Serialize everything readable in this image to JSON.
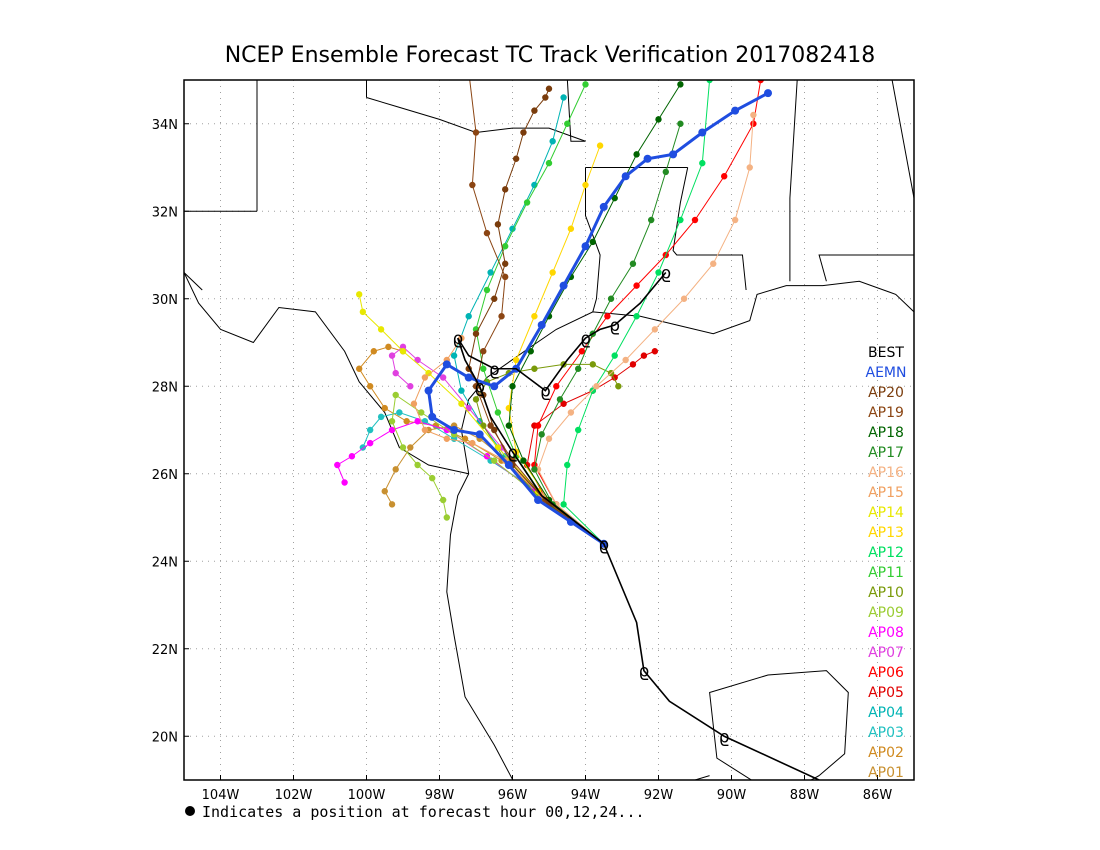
{
  "title": "NCEP Ensemble Forecast TC Track Verification 2017082418",
  "footnote": "Indicates a position at forecast hour 00,12,24...",
  "colors": {
    "best": "#000000",
    "aemn": "#1f4de0",
    "coast": "#000000",
    "grid": "#a0a0a0"
  },
  "chart_data": {
    "type": "scatter",
    "title": "NCEP Ensemble Forecast TC Track Verification 2017082418",
    "xlabel": "",
    "ylabel": "",
    "xlim": [
      -105,
      -85
    ],
    "ylim": [
      19,
      35
    ],
    "x_ticks": [
      -104,
      -102,
      -100,
      -98,
      -96,
      -94,
      -92,
      -90,
      -88,
      -86
    ],
    "x_tick_labels": [
      "104W",
      "102W",
      "100W",
      "98W",
      "96W",
      "94W",
      "92W",
      "90W",
      "88W",
      "86W"
    ],
    "y_ticks": [
      20,
      22,
      24,
      26,
      28,
      30,
      32,
      34
    ],
    "y_tick_labels": [
      "20N",
      "22N",
      "24N",
      "26N",
      "28N",
      "30N",
      "32N",
      "34N"
    ],
    "grid": true,
    "legend_position": "right",
    "legend": [
      "BEST",
      "AEMN",
      "AP20",
      "AP19",
      "AP18",
      "AP17",
      "AP16",
      "AP15",
      "AP14",
      "AP13",
      "AP12",
      "AP11",
      "AP10",
      "AP09",
      "AP08",
      "AP07",
      "AP06",
      "AP05",
      "AP04",
      "AP03",
      "AP02",
      "AP01"
    ],
    "series": [
      {
        "name": "BEST",
        "color": "#000000",
        "marker": "storm-symbol",
        "lon": [
          -87.6,
          -90.2,
          -91.7,
          -92.4,
          -92.6,
          -93.5,
          -95.2,
          -96.0,
          -96.6,
          -96.9,
          -97.3,
          -97.5,
          -97.2,
          -96.5,
          -95.9,
          -95.1,
          -94.5,
          -94.0,
          -93.6,
          -93.2,
          -92.5,
          -91.8
        ],
        "lat": [
          19.0,
          20.0,
          20.8,
          21.5,
          22.6,
          24.4,
          25.5,
          26.5,
          27.3,
          28.0,
          28.6,
          29.1,
          28.7,
          28.4,
          28.4,
          27.9,
          28.6,
          29.1,
          29.3,
          29.4,
          29.9,
          30.6
        ]
      },
      {
        "name": "AEMN",
        "color": "#1f4de0",
        "lon": [
          -93.5,
          -94.4,
          -95.3,
          -96.1,
          -96.9,
          -97.6,
          -98.2,
          -98.3,
          -97.8,
          -97.2,
          -96.5,
          -95.9,
          -95.2,
          -94.6,
          -94.0,
          -93.5,
          -92.9,
          -92.3,
          -91.6,
          -90.8,
          -89.9,
          -89.0
        ],
        "lat": [
          24.4,
          24.9,
          25.4,
          26.2,
          26.9,
          27.0,
          27.3,
          27.9,
          28.5,
          28.2,
          28.0,
          28.4,
          29.4,
          30.3,
          31.2,
          32.1,
          32.8,
          33.2,
          33.3,
          33.8,
          34.3,
          34.7
        ]
      },
      {
        "name": "AP20",
        "color": "#7a3c0c",
        "lon": [
          -93.5,
          -95.0,
          -96.0,
          -96.5,
          -96.8,
          -97.2,
          -97.0,
          -96.5,
          -96.2,
          -96.4,
          -96.2,
          -95.9,
          -95.7,
          -95.4,
          -95.1,
          -95.0
        ],
        "lat": [
          24.4,
          25.3,
          26.2,
          27.0,
          27.8,
          28.4,
          29.2,
          30.0,
          30.8,
          31.7,
          32.5,
          33.2,
          33.8,
          34.3,
          34.6,
          34.8
        ]
      },
      {
        "name": "AP19",
        "color": "#8b4513",
        "lon": [
          -93.5,
          -95.1,
          -96.0,
          -96.6,
          -97.0,
          -96.8,
          -96.3,
          -96.2,
          -96.7,
          -97.1,
          -97.0,
          -97.2
        ],
        "lat": [
          24.4,
          25.4,
          26.3,
          27.1,
          28.0,
          28.8,
          29.6,
          30.5,
          31.5,
          32.6,
          33.8,
          35.2
        ]
      },
      {
        "name": "AP18",
        "color": "#006400",
        "lon": [
          -93.5,
          -95.0,
          -95.7,
          -96.1,
          -96.0,
          -95.5,
          -95.0,
          -94.4,
          -93.8,
          -93.2,
          -92.6,
          -92.0,
          -91.4
        ],
        "lat": [
          24.4,
          25.4,
          26.3,
          27.1,
          28.0,
          28.8,
          29.6,
          30.5,
          31.3,
          32.3,
          33.3,
          34.1,
          34.9
        ]
      },
      {
        "name": "AP17",
        "color": "#228b22",
        "lon": [
          -93.5,
          -94.9,
          -95.4,
          -95.2,
          -94.7,
          -94.2,
          -93.8,
          -93.3,
          -92.7,
          -92.2,
          -91.8,
          -91.4
        ],
        "lat": [
          24.4,
          25.3,
          26.1,
          26.9,
          27.7,
          28.4,
          29.2,
          30.0,
          30.8,
          31.8,
          32.9,
          34.0
        ]
      },
      {
        "name": "AP16",
        "color": "#f4b283",
        "lon": [
          -93.5,
          -94.8,
          -95.3,
          -95.0,
          -94.4,
          -93.7,
          -92.9,
          -92.1,
          -91.3,
          -90.5,
          -89.9,
          -89.5,
          -89.4
        ],
        "lat": [
          24.4,
          25.3,
          26.1,
          26.8,
          27.4,
          28.0,
          28.6,
          29.3,
          30.0,
          30.8,
          31.8,
          33.0,
          34.2
        ]
      },
      {
        "name": "AP15",
        "color": "#f0a060",
        "lon": [
          -93.5,
          -95.2,
          -96.2,
          -97.1,
          -97.8,
          -98.4,
          -98.7,
          -98.4,
          -97.8,
          -97.4
        ],
        "lat": [
          24.4,
          25.5,
          26.3,
          26.7,
          26.8,
          27.0,
          27.6,
          28.2,
          28.6,
          29.1
        ]
      },
      {
        "name": "AP14",
        "color": "#e8e800",
        "lon": [
          -93.5,
          -95.3,
          -96.4,
          -97.4,
          -98.3,
          -99.0,
          -99.6,
          -100.1,
          -100.2
        ],
        "lat": [
          24.4,
          25.6,
          26.6,
          27.6,
          28.3,
          28.8,
          29.3,
          29.7,
          30.1
        ]
      },
      {
        "name": "AP13",
        "color": "#ffd700",
        "lon": [
          -93.5,
          -95.0,
          -95.9,
          -96.1,
          -95.9,
          -95.4,
          -94.9,
          -94.4,
          -94.0,
          -93.6
        ],
        "lat": [
          24.4,
          25.4,
          26.5,
          27.5,
          28.6,
          29.6,
          30.6,
          31.6,
          32.6,
          33.5
        ]
      },
      {
        "name": "AP12",
        "color": "#00e060",
        "lon": [
          -93.5,
          -94.6,
          -94.5,
          -94.2,
          -93.8,
          -93.2,
          -92.6,
          -92.0,
          -91.4,
          -90.8,
          -90.6
        ],
        "lat": [
          24.4,
          25.3,
          26.2,
          27.0,
          27.9,
          28.7,
          29.6,
          30.6,
          31.8,
          33.1,
          35.0
        ]
      },
      {
        "name": "AP11",
        "color": "#32cd32",
        "lon": [
          -93.5,
          -95.1,
          -95.9,
          -96.4,
          -96.8,
          -97.0,
          -96.7,
          -96.2,
          -95.6,
          -95.0,
          -94.5,
          -94.0
        ],
        "lat": [
          24.4,
          25.4,
          26.4,
          27.4,
          28.4,
          29.3,
          30.2,
          31.2,
          32.2,
          33.1,
          34.0,
          34.9
        ]
      },
      {
        "name": "AP10",
        "color": "#7a9a0a",
        "lon": [
          -93.5,
          -95.2,
          -96.2,
          -96.8,
          -97.0,
          -96.7,
          -96.1,
          -95.4,
          -94.6,
          -93.8,
          -93.3,
          -93.1
        ],
        "lat": [
          24.4,
          25.4,
          26.3,
          27.1,
          27.7,
          28.1,
          28.3,
          28.4,
          28.5,
          28.5,
          28.3,
          28.0
        ]
      },
      {
        "name": "AP09",
        "color": "#9acd32",
        "lon": [
          -93.5,
          -95.3,
          -96.5,
          -97.6,
          -98.5,
          -99.2,
          -99.3,
          -99.0,
          -98.6,
          -98.2,
          -97.9,
          -97.8
        ],
        "lat": [
          24.4,
          25.5,
          26.3,
          26.9,
          27.4,
          27.8,
          27.2,
          26.6,
          26.2,
          25.9,
          25.4,
          25.0
        ]
      },
      {
        "name": "AP08",
        "color": "#ff00ff",
        "lon": [
          -93.5,
          -95.4,
          -96.7,
          -97.8,
          -98.6,
          -99.3,
          -99.9,
          -100.4,
          -100.8,
          -100.6
        ],
        "lat": [
          24.4,
          25.6,
          26.4,
          27.0,
          27.2,
          27.0,
          26.7,
          26.4,
          26.2,
          25.8
        ]
      },
      {
        "name": "AP07",
        "color": "#e040e0",
        "lon": [
          -93.5,
          -95.3,
          -96.3,
          -97.2,
          -97.9,
          -98.6,
          -99.0,
          -99.3,
          -99.2,
          -98.8
        ],
        "lat": [
          24.4,
          25.5,
          26.6,
          27.5,
          28.2,
          28.6,
          28.9,
          28.7,
          28.3,
          28.0
        ]
      },
      {
        "name": "AP06",
        "color": "#ff0000",
        "lon": [
          -93.5,
          -94.8,
          -95.4,
          -95.3,
          -94.8,
          -94.1,
          -93.4,
          -92.6,
          -91.8,
          -91.0,
          -90.2,
          -89.4,
          -89.2
        ],
        "lat": [
          24.4,
          25.3,
          26.2,
          27.1,
          28.0,
          28.8,
          29.6,
          30.3,
          31.0,
          31.8,
          32.8,
          34.0,
          35.0
        ]
      },
      {
        "name": "AP05",
        "color": "#e00000",
        "lon": [
          -93.5,
          -95.0,
          -95.6,
          -95.4,
          -94.6,
          -93.8,
          -93.2,
          -92.7,
          -92.4,
          -92.1
        ],
        "lat": [
          24.4,
          25.3,
          26.2,
          27.1,
          27.6,
          27.9,
          28.2,
          28.5,
          28.7,
          28.8
        ]
      },
      {
        "name": "AP04",
        "color": "#00b4b4",
        "lon": [
          -93.5,
          -95.2,
          -96.2,
          -96.9,
          -97.4,
          -97.6,
          -97.2,
          -96.6,
          -96.0,
          -95.4,
          -94.9,
          -94.6
        ],
        "lat": [
          24.4,
          25.5,
          26.4,
          27.2,
          27.9,
          28.7,
          29.6,
          30.6,
          31.6,
          32.6,
          33.6,
          34.6
        ]
      },
      {
        "name": "AP03",
        "color": "#20c0c0",
        "lon": [
          -93.5,
          -95.3,
          -96.6,
          -97.6,
          -98.4,
          -99.1,
          -99.6,
          -99.9,
          -100.1
        ],
        "lat": [
          24.4,
          25.6,
          26.3,
          26.8,
          27.2,
          27.4,
          27.3,
          27.0,
          26.6
        ]
      },
      {
        "name": "AP02",
        "color": "#d08a20",
        "lon": [
          -93.5,
          -95.2,
          -96.3,
          -97.3,
          -98.1,
          -98.9,
          -99.5,
          -99.9,
          -100.2,
          -99.8,
          -99.4,
          -99.0
        ],
        "lat": [
          24.4,
          25.5,
          26.3,
          26.8,
          27.1,
          27.2,
          27.5,
          28.0,
          28.4,
          28.8,
          28.9,
          28.8
        ]
      },
      {
        "name": "AP01",
        "color": "#c89030",
        "lon": [
          -93.5,
          -95.1,
          -96.0,
          -96.9,
          -97.6,
          -98.3,
          -98.8,
          -99.2,
          -99.5,
          -99.3
        ],
        "lat": [
          24.4,
          25.4,
          26.2,
          26.8,
          27.1,
          27.0,
          26.6,
          26.1,
          25.6,
          25.3
        ]
      }
    ]
  }
}
